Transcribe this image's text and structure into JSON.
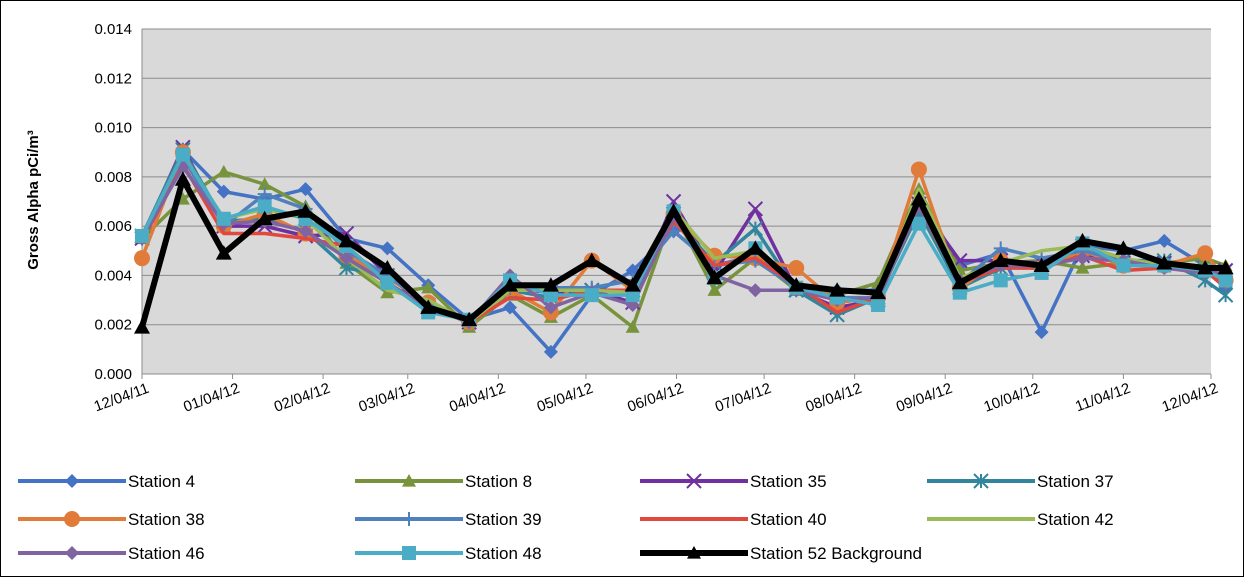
{
  "chart_data": {
    "type": "line",
    "title": "",
    "xlabel": "",
    "ylabel": "Gross  Alpha pCi/m³",
    "ylim": [
      0,
      0.014
    ],
    "yticks": [
      "0.000",
      "0.002",
      "0.004",
      "0.006",
      "0.008",
      "0.010",
      "0.012",
      "0.014"
    ],
    "ytick_values": [
      0,
      0.002,
      0.004,
      0.006,
      0.008,
      0.01,
      0.012,
      0.014
    ],
    "xticks": [
      "12/04/11",
      "01/04/12",
      "02/04/12",
      "03/04/12",
      "04/04/12",
      "05/04/12",
      "06/04/12",
      "07/04/12",
      "08/04/12",
      "09/04/12",
      "10/04/12",
      "11/04/12",
      "12/04/12"
    ],
    "grid": true,
    "legend_position": "bottom",
    "plot_background": "#d9d9d9",
    "x": [
      "12/04/11",
      "12/18/11",
      "01/01/12",
      "01/15/12",
      "01/29/12",
      "02/12/12",
      "02/26/12",
      "03/11/12",
      "03/25/12",
      "04/08/12",
      "04/22/12",
      "05/06/12",
      "05/20/12",
      "06/03/12",
      "06/17/12",
      "07/01/12",
      "07/15/12",
      "07/29/12",
      "08/12/12",
      "08/26/12",
      "09/09/12",
      "09/23/12",
      "10/07/12",
      "10/21/12",
      "11/04/12",
      "11/18/12",
      "12/02/12",
      "12/09/12"
    ],
    "series": [
      {
        "name": "Station 4",
        "color": "#4472c4",
        "marker": "diamond",
        "values": [
          0.0056,
          0.0091,
          0.0074,
          0.0071,
          0.0075,
          0.0055,
          0.0051,
          0.0036,
          0.0022,
          0.0027,
          0.0009,
          0.0032,
          0.0042,
          0.0058,
          0.0044,
          0.0048,
          0.0034,
          0.0034,
          0.0034,
          0.0071,
          0.0044,
          0.0049,
          0.0017,
          0.0052,
          0.005,
          0.0054,
          0.0044,
          0.0035
        ]
      },
      {
        "name": "Station 8",
        "color": "#77933c",
        "marker": "triangle",
        "values": [
          0.0055,
          0.0071,
          0.0082,
          0.0077,
          0.0068,
          0.0045,
          0.0033,
          0.0035,
          0.0019,
          0.0032,
          0.0023,
          0.0032,
          0.0019,
          0.0066,
          0.0034,
          0.0047,
          0.0034,
          0.0032,
          0.0037,
          0.0075,
          0.0042,
          0.0045,
          0.0046,
          0.0043,
          0.0045,
          0.0045,
          0.0047,
          0.0044
        ]
      },
      {
        "name": "Station 35",
        "color": "#7030a0",
        "marker": "x",
        "values": [
          0.0055,
          0.0092,
          0.006,
          0.006,
          0.0056,
          0.0057,
          0.004,
          0.0027,
          0.0021,
          0.0035,
          0.0033,
          0.0034,
          0.0029,
          0.007,
          0.0041,
          0.0067,
          0.0034,
          0.0027,
          0.003,
          0.0069,
          0.0046,
          0.0046,
          0.0045,
          0.0048,
          0.0045,
          0.0045,
          0.0042,
          0.0042
        ]
      },
      {
        "name": "Station 37",
        "color": "#31859c",
        "marker": "asterisk",
        "values": [
          0.0056,
          0.0091,
          0.0062,
          0.0063,
          0.0058,
          0.0043,
          0.004,
          0.0028,
          0.0022,
          0.0034,
          0.0031,
          0.0034,
          0.0034,
          0.0063,
          0.0045,
          0.0059,
          0.0034,
          0.0024,
          0.0031,
          0.0066,
          0.0035,
          0.0043,
          0.0043,
          0.0052,
          0.0046,
          0.0046,
          0.0038,
          0.0032
        ]
      },
      {
        "name": "Station 38",
        "color": "#e07b39",
        "marker": "circle",
        "values": [
          0.0047,
          0.009,
          0.006,
          0.0065,
          0.0057,
          0.0048,
          0.0039,
          0.0029,
          0.0021,
          0.0034,
          0.0025,
          0.0046,
          0.0034,
          0.0065,
          0.0048,
          0.0047,
          0.0043,
          0.0029,
          0.0031,
          0.0083,
          0.0035,
          0.0046,
          0.0043,
          0.005,
          0.0044,
          0.0044,
          0.0049,
          0.0038
        ]
      },
      {
        "name": "Station 39",
        "color": "#4f81bd",
        "marker": "plus",
        "values": [
          0.0055,
          0.0088,
          0.006,
          0.0073,
          0.0067,
          0.005,
          0.004,
          0.0028,
          0.0021,
          0.0035,
          0.0035,
          0.0035,
          0.0038,
          0.0058,
          0.0044,
          0.0046,
          0.0035,
          0.0031,
          0.0031,
          0.0069,
          0.0037,
          0.0051,
          0.0047,
          0.005,
          0.0046,
          0.0045,
          0.0043,
          0.0037
        ]
      },
      {
        "name": "Station 40",
        "color": "#e0483e",
        "marker": "none",
        "values": [
          0.0054,
          0.0085,
          0.0057,
          0.0057,
          0.0055,
          0.0052,
          0.0037,
          0.0027,
          0.0021,
          0.0031,
          0.003,
          0.0034,
          0.0034,
          0.0062,
          0.0044,
          0.0047,
          0.0036,
          0.0025,
          0.0031,
          0.0068,
          0.0037,
          0.0043,
          0.0043,
          0.0048,
          0.0042,
          0.0043,
          0.0042,
          0.0035
        ]
      },
      {
        "name": "Station 42",
        "color": "#9bbb59",
        "marker": "none",
        "values": [
          0.0056,
          0.0089,
          0.0063,
          0.0067,
          0.0063,
          0.0047,
          0.0034,
          0.003,
          0.0021,
          0.0034,
          0.0034,
          0.0034,
          0.0033,
          0.0067,
          0.0047,
          0.005,
          0.0036,
          0.003,
          0.0031,
          0.0075,
          0.0039,
          0.0045,
          0.005,
          0.0052,
          0.0047,
          0.0044,
          0.0044,
          0.0043
        ]
      },
      {
        "name": "Station 46",
        "color": "#8064a2",
        "marker": "diamond",
        "values": [
          0.0055,
          0.0084,
          0.0061,
          0.0062,
          0.0058,
          0.0047,
          0.0037,
          0.0027,
          0.0021,
          0.004,
          0.0027,
          0.0033,
          0.0028,
          0.0064,
          0.004,
          0.0034,
          0.0034,
          0.003,
          0.0031,
          0.0068,
          0.0038,
          0.0044,
          0.0044,
          0.0047,
          0.0046,
          0.0043,
          0.0041,
          0.0041
        ]
      },
      {
        "name": "Station 48",
        "color": "#4bacc6",
        "marker": "square",
        "values": [
          0.0056,
          0.0089,
          0.0063,
          0.0068,
          0.0063,
          0.0052,
          0.0037,
          0.0025,
          0.0022,
          0.0038,
          0.0032,
          0.0032,
          0.0032,
          0.0066,
          0.0039,
          0.0051,
          0.0035,
          0.0031,
          0.0028,
          0.0061,
          0.0033,
          0.0038,
          0.0041,
          0.0053,
          0.0044,
          0.0044,
          0.0042,
          0.0038
        ]
      },
      {
        "name": "Station 52 Background",
        "color": "#000000",
        "marker": "triangle",
        "bold": true,
        "values": [
          0.0019,
          0.0079,
          0.0049,
          0.0063,
          0.0066,
          0.0054,
          0.0043,
          0.0027,
          0.0022,
          0.0036,
          0.0036,
          0.0046,
          0.0036,
          0.0066,
          0.0039,
          0.0051,
          0.0036,
          0.0034,
          0.0033,
          0.0071,
          0.0037,
          0.0046,
          0.0044,
          0.0054,
          0.0051,
          0.0045,
          0.0043,
          0.0043
        ]
      }
    ]
  }
}
